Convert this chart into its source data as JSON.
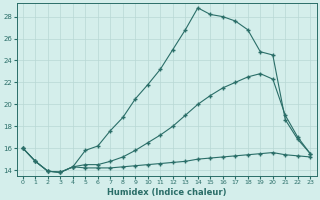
{
  "xlabel": "Humidex (Indice chaleur)",
  "bg_color": "#d4eeeb",
  "line_color": "#2a6e68",
  "grid_color": "#b8d8d5",
  "xlim": [
    -0.5,
    23.5
  ],
  "ylim": [
    13.5,
    29.2
  ],
  "yticks": [
    14,
    16,
    18,
    20,
    22,
    24,
    26,
    28
  ],
  "xticks": [
    0,
    1,
    2,
    3,
    4,
    5,
    6,
    7,
    8,
    9,
    10,
    11,
    12,
    13,
    14,
    15,
    16,
    17,
    18,
    19,
    20,
    21,
    22,
    23
  ],
  "line1_x": [
    0,
    1,
    2,
    3,
    4,
    5,
    6,
    7,
    8,
    9,
    10,
    11,
    12,
    13,
    14,
    15,
    16,
    17,
    18,
    19,
    20,
    21,
    22,
    23
  ],
  "line1_y": [
    16.0,
    14.8,
    13.9,
    13.8,
    14.3,
    15.8,
    16.2,
    17.6,
    18.8,
    20.5,
    21.8,
    23.2,
    25.0,
    26.8,
    28.8,
    28.2,
    28.0,
    27.6,
    26.8,
    24.8,
    24.5,
    18.6,
    16.8,
    15.5
  ],
  "line2_x": [
    0,
    1,
    2,
    3,
    4,
    5,
    6,
    7,
    8,
    9,
    10,
    11,
    12,
    13,
    14,
    15,
    16,
    17,
    18,
    19,
    20,
    21,
    22,
    23
  ],
  "line2_y": [
    16.0,
    14.8,
    13.9,
    13.8,
    14.3,
    14.5,
    14.5,
    14.8,
    15.2,
    15.8,
    16.5,
    17.2,
    18.0,
    19.0,
    20.0,
    20.8,
    21.5,
    22.0,
    22.5,
    22.8,
    22.3,
    19.0,
    17.0,
    15.5
  ],
  "line3_x": [
    0,
    1,
    2,
    3,
    4,
    5,
    6,
    7,
    8,
    9,
    10,
    11,
    12,
    13,
    14,
    15,
    16,
    17,
    18,
    19,
    20,
    21,
    22,
    23
  ],
  "line3_y": [
    16.0,
    14.8,
    13.9,
    13.8,
    14.3,
    14.2,
    14.2,
    14.2,
    14.3,
    14.4,
    14.5,
    14.6,
    14.7,
    14.8,
    15.0,
    15.1,
    15.2,
    15.3,
    15.4,
    15.5,
    15.6,
    15.4,
    15.3,
    15.2
  ]
}
